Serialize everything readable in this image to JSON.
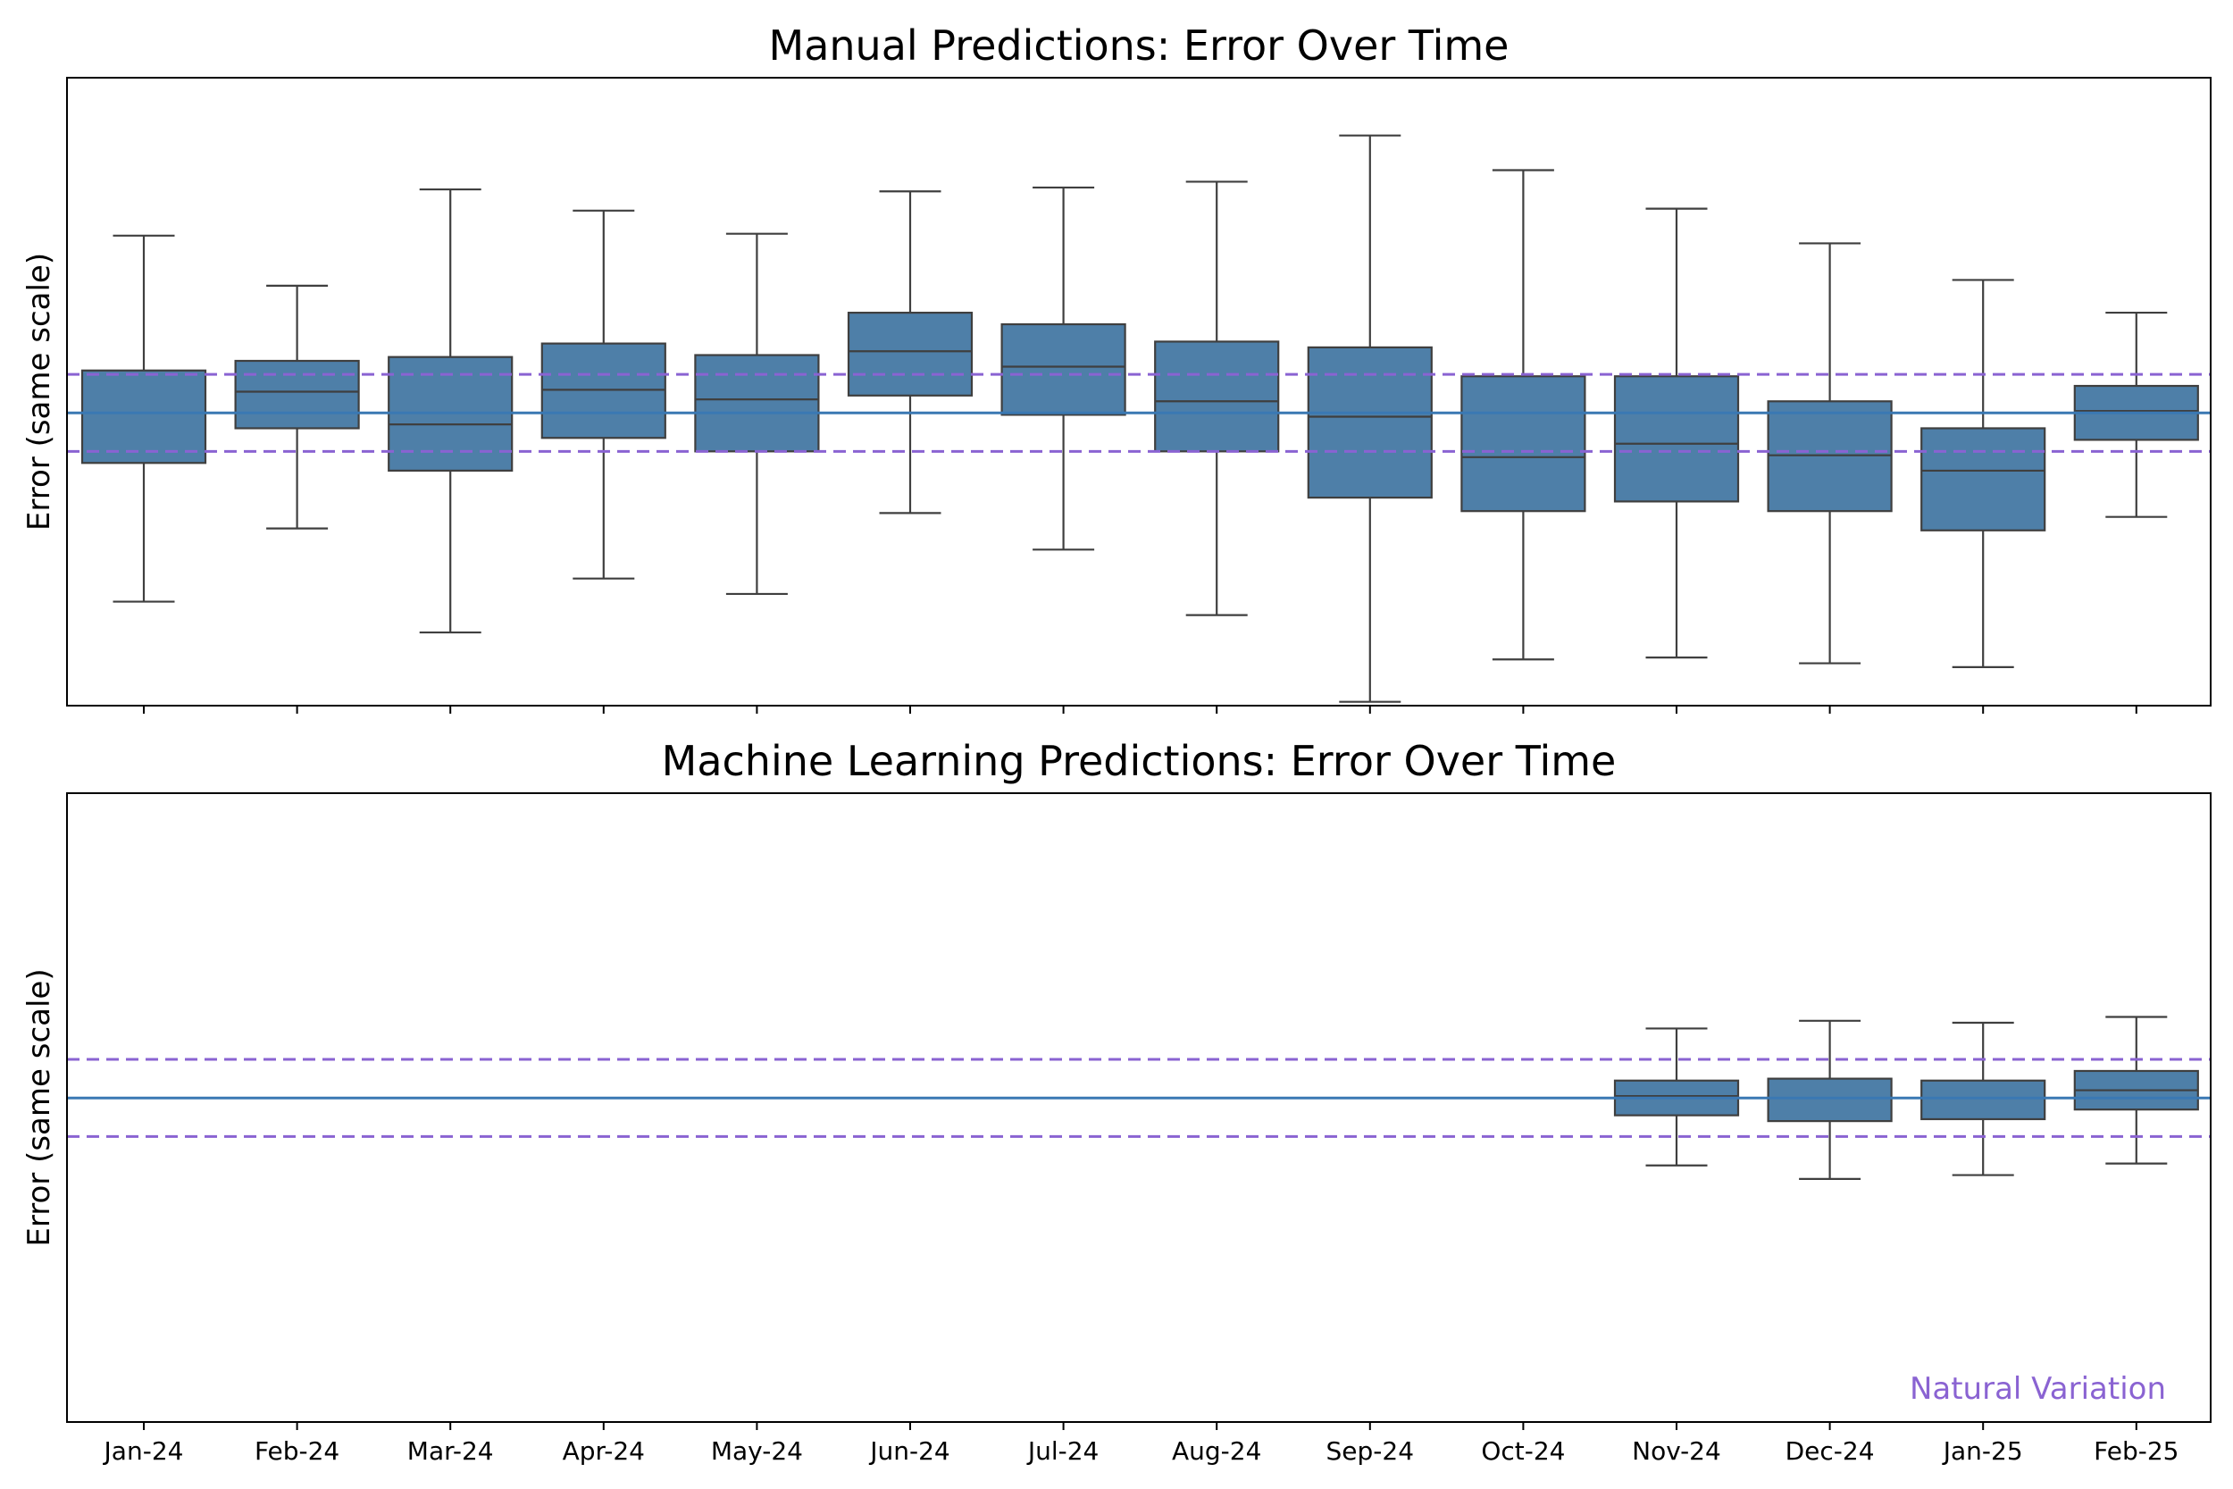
{
  "colors": {
    "box_fill": "#4e7fa8",
    "box_edge": "#3f3f3f",
    "baseline": "#3a78b3",
    "limits": "#8a63d2",
    "annotation": "#8a63d2"
  },
  "annotation": "Natural Variation",
  "chart_data": [
    {
      "type": "boxplot",
      "title": "Manual Predictions: Error Over Time",
      "ylabel": "Error (same scale)",
      "xlabel": "",
      "ylim": [
        -7.6,
        8.7
      ],
      "center_line": 0,
      "control_limits": [
        -1,
        1
      ],
      "show_tick_labels": false,
      "categories": [
        "Jan-24",
        "Feb-24",
        "Mar-24",
        "Apr-24",
        "May-24",
        "Jun-24",
        "Jul-24",
        "Aug-24",
        "Sep-24",
        "Oct-24",
        "Nov-24",
        "Dec-24",
        "Jan-25",
        "Feb-25"
      ],
      "boxes": [
        {
          "whislo": -4.9,
          "q1": -1.3,
          "med": 0.0,
          "q3": 1.1,
          "whishi": 4.6
        },
        {
          "whislo": -3.0,
          "q1": -0.4,
          "med": 0.55,
          "q3": 1.35,
          "whishi": 3.3
        },
        {
          "whislo": -5.7,
          "q1": -1.5,
          "med": -0.3,
          "q3": 1.45,
          "whishi": 5.8
        },
        {
          "whislo": -4.3,
          "q1": -0.65,
          "med": 0.6,
          "q3": 1.8,
          "whishi": 5.25
        },
        {
          "whislo": -4.7,
          "q1": -1.0,
          "med": 0.35,
          "q3": 1.5,
          "whishi": 4.65
        },
        {
          "whislo": -2.6,
          "q1": 0.45,
          "med": 1.6,
          "q3": 2.6,
          "whishi": 5.75
        },
        {
          "whislo": -3.55,
          "q1": -0.05,
          "med": 1.2,
          "q3": 2.3,
          "whishi": 5.85
        },
        {
          "whislo": -5.25,
          "q1": -1.0,
          "med": 0.3,
          "q3": 1.85,
          "whishi": 6.0
        },
        {
          "whislo": -7.5,
          "q1": -2.2,
          "med": -0.1,
          "q3": 1.7,
          "whishi": 7.2
        },
        {
          "whislo": -6.4,
          "q1": -2.55,
          "med": -1.15,
          "q3": 0.95,
          "whishi": 6.3
        },
        {
          "whislo": -6.35,
          "q1": -2.3,
          "med": -0.8,
          "q3": 0.95,
          "whishi": 5.3
        },
        {
          "whislo": -6.5,
          "q1": -2.55,
          "med": -1.1,
          "q3": 0.3,
          "whishi": 4.4
        },
        {
          "whislo": -6.6,
          "q1": -3.05,
          "med": -1.5,
          "q3": -0.4,
          "whishi": 3.45
        },
        {
          "whislo": -2.7,
          "q1": -0.7,
          "med": 0.05,
          "q3": 0.7,
          "whishi": 2.6
        }
      ]
    },
    {
      "type": "boxplot",
      "title": "Machine Learning Predictions: Error Over Time",
      "ylabel": "Error (same scale)",
      "xlabel": "",
      "ylim": [
        -8.4,
        7.9
      ],
      "center_line": 0,
      "control_limits": [
        -1,
        1
      ],
      "show_tick_labels": true,
      "categories": [
        "Jan-24",
        "Feb-24",
        "Mar-24",
        "Apr-24",
        "May-24",
        "Jun-24",
        "Jul-24",
        "Aug-24",
        "Sep-24",
        "Oct-24",
        "Nov-24",
        "Dec-24",
        "Jan-25",
        "Feb-25"
      ],
      "boxes": [
        null,
        null,
        null,
        null,
        null,
        null,
        null,
        null,
        null,
        null,
        {
          "whislo": -1.75,
          "q1": -0.45,
          "med": 0.05,
          "q3": 0.45,
          "whishi": 1.8
        },
        {
          "whislo": -2.1,
          "q1": -0.6,
          "med": 0.0,
          "q3": 0.5,
          "whishi": 2.0
        },
        {
          "whislo": -2.0,
          "q1": -0.55,
          "med": 0.0,
          "q3": 0.45,
          "whishi": 1.95
        },
        {
          "whislo": -1.7,
          "q1": -0.3,
          "med": 0.2,
          "q3": 0.7,
          "whishi": 2.1
        }
      ]
    }
  ]
}
